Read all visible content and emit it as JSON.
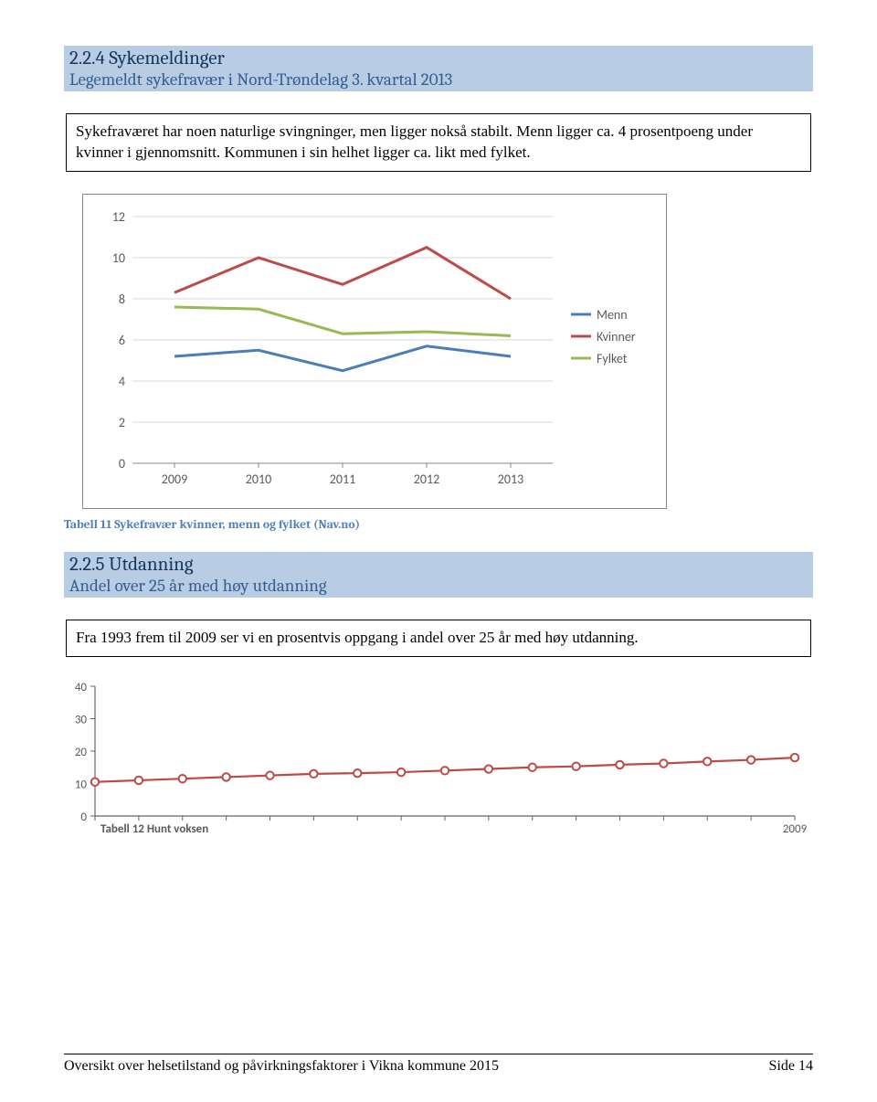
{
  "section1": {
    "number_title": "2.2.4 Sykemeldinger",
    "subtitle": "Legemeldt sykefravær i Nord-Trøndelag 3. kvartal 2013"
  },
  "box1_text": "Sykefraværet har noen naturlige svingninger, men ligger nokså stabilt. Menn ligger ca. 4 prosentpoeng under kvinner i gjennomsnitt. Kommunen i sin helhet ligger ca. likt med fylket.",
  "chart1": {
    "type": "line",
    "categories": [
      "2009",
      "2010",
      "2011",
      "2012",
      "2013"
    ],
    "ylim": [
      0,
      12
    ],
    "yticks": [
      0,
      2,
      4,
      6,
      8,
      10,
      12
    ],
    "grid_color": "#d9d9d9",
    "axis_color": "#888888",
    "tick_font_size": 14,
    "background": "#ffffff",
    "line_width": 3,
    "series": [
      {
        "name": "Menn",
        "color": "#4a7ebb",
        "values": [
          5.2,
          5.5,
          4.5,
          5.7,
          5.2
        ]
      },
      {
        "name": "Kvinner",
        "color": "#be4b48",
        "values": [
          8.3,
          10.0,
          8.7,
          10.5,
          8.0
        ]
      },
      {
        "name": "Fylket",
        "color": "#98b954",
        "values": [
          7.6,
          7.5,
          6.3,
          6.4,
          6.2
        ]
      }
    ],
    "legend_position": "right",
    "legend_font_size": 14
  },
  "caption1": "Tabell 11 Sykefravær kvinner, menn og fylket (Nav.no)",
  "section2": {
    "number_title": "2.2.5 Utdanning",
    "subtitle": "Andel over 25 år med høy utdanning"
  },
  "box2_text": "Fra 1993 frem til 2009 ser vi en prosentvis oppgang i andel over 25 år med høy utdanning.",
  "chart2": {
    "type": "line-markers",
    "ylim": [
      0,
      40
    ],
    "yticks": [
      0,
      10,
      20,
      30,
      40
    ],
    "x_count": 17,
    "x_labels": {
      "last": "2009"
    },
    "line_color": "#be4a47",
    "marker_fill": "#ffffff",
    "marker_stroke": "#be4a47",
    "marker_radius": 4.2,
    "line_width": 2.2,
    "axis_color": "#666666",
    "tick_color": "#666666",
    "values": [
      10.5,
      11,
      11.5,
      12,
      12.5,
      13,
      13.2,
      13.5,
      14,
      14.5,
      15,
      15.3,
      15.8,
      16.2,
      16.8,
      17.3,
      18.0
    ]
  },
  "caption2": "Tabell 12 Hunt voksen",
  "footer": {
    "left": "Oversikt over helsetilstand og påvirkningsfaktorer i Vikna kommune 2015",
    "right": "Side 14"
  }
}
